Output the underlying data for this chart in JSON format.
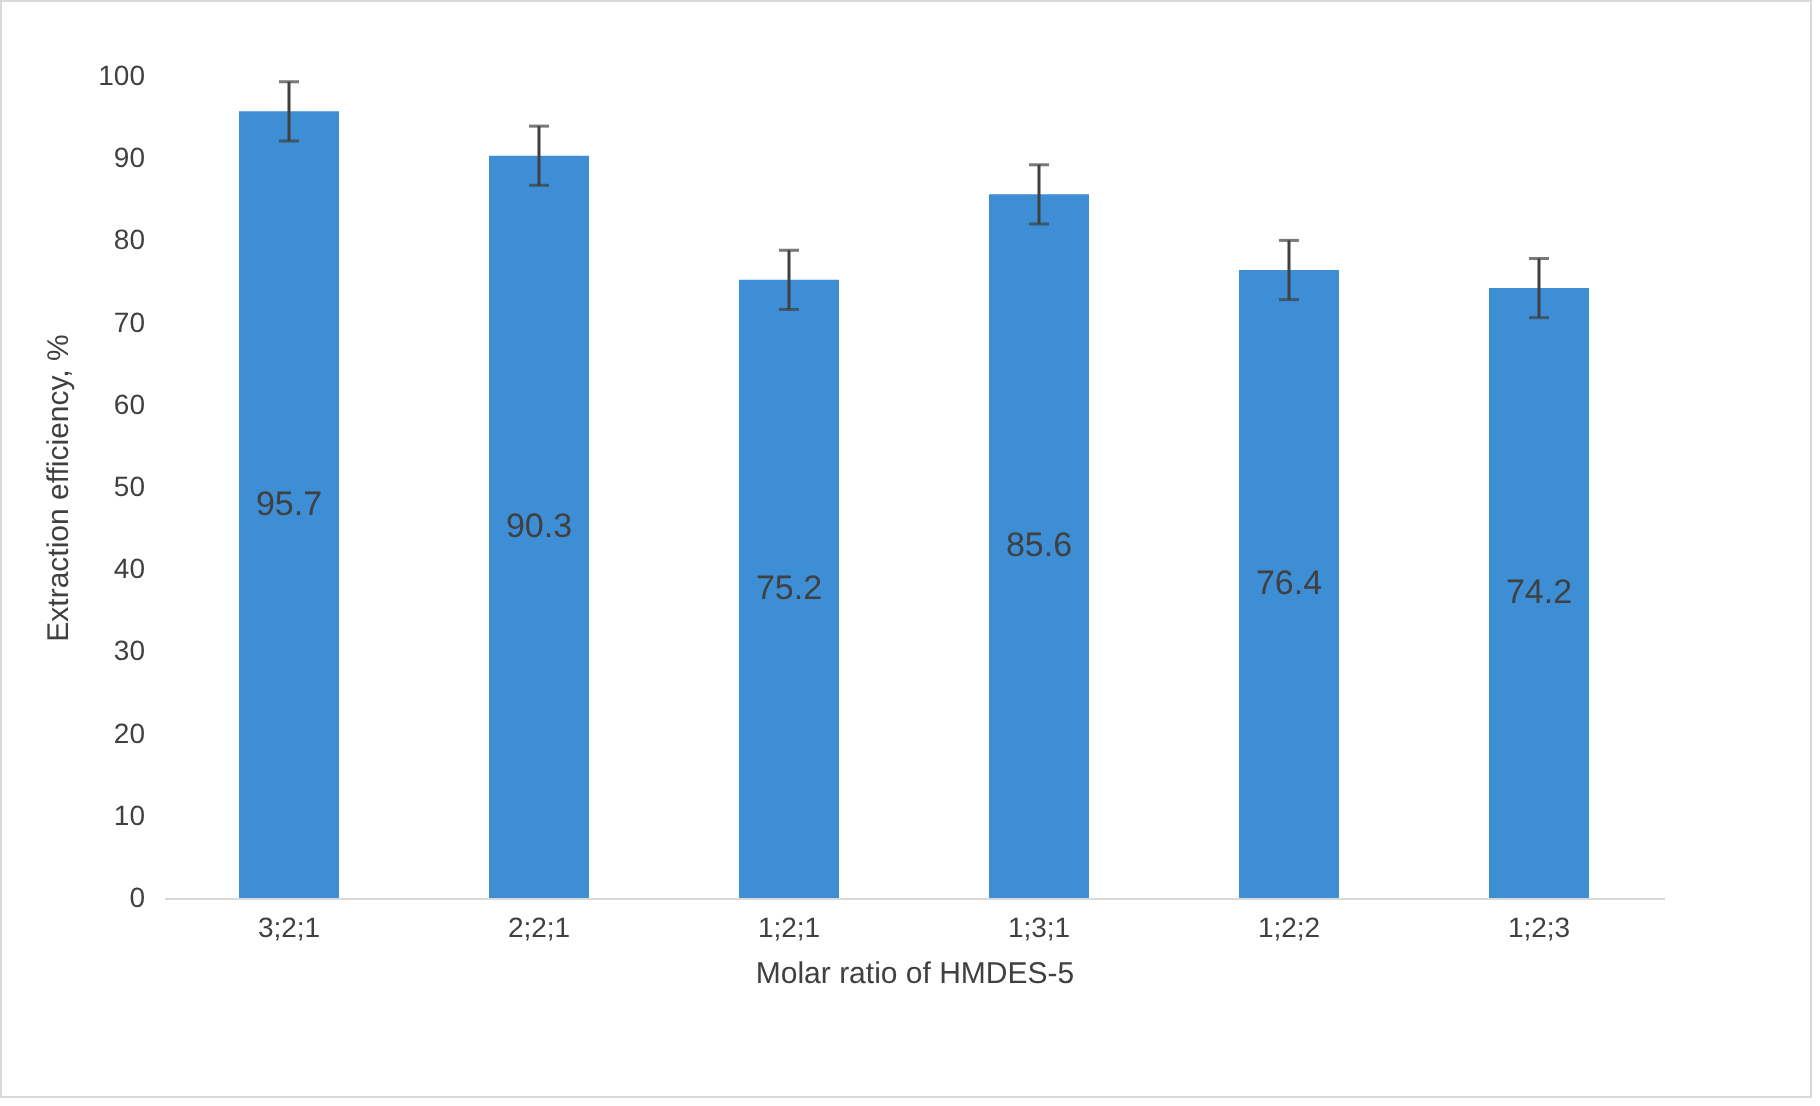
{
  "chart_data": {
    "type": "bar",
    "xlabel": "Molar ratio of HMDES-5",
    "ylabel": "Extraction efficiency, %",
    "categories": [
      "3;2;1",
      "2;2;1",
      "1;2;1",
      "1;3;1",
      "1;2;2",
      "1;2;3"
    ],
    "values": [
      95.7,
      90.3,
      75.2,
      85.6,
      76.4,
      74.2
    ],
    "errors": [
      3.6,
      3.6,
      3.6,
      3.6,
      3.6,
      3.6
    ],
    "color": "#3e8ed6",
    "data_labels": true,
    "grid": false,
    "ylim": [
      0,
      100
    ],
    "yticks": [
      0,
      10,
      20,
      30,
      40,
      50,
      60,
      70,
      80,
      90,
      100
    ]
  }
}
